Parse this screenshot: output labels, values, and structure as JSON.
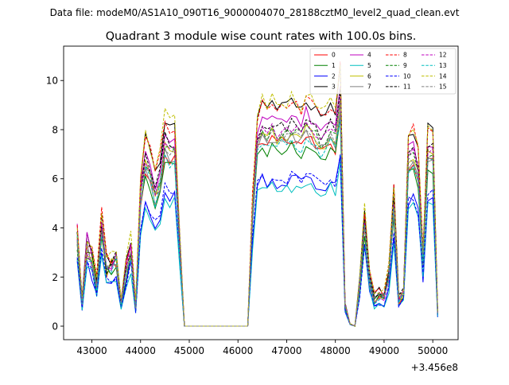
{
  "suptitle": "Data file: modeM0/AS1A10_090T16_9000004070_28188cztM0_level2_quad_clean.evt",
  "chart_data": {
    "type": "line",
    "title": "Quadrant 3 module wise count rates with 100.0s bins.",
    "xlabel": "",
    "ylabel": "",
    "x_offset_label": "+3.456e8",
    "xlim": [
      42420,
      50520
    ],
    "ylim": [
      -0.55,
      11.4
    ],
    "xticks": [
      43000,
      44000,
      45000,
      46000,
      47000,
      48000,
      49000,
      50000
    ],
    "xtick_labels": [
      "43000",
      "44000",
      "45000",
      "46000",
      "47000",
      "48000",
      "49000",
      "50000"
    ],
    "yticks": [
      0,
      2,
      4,
      6,
      8,
      10
    ],
    "ytick_labels": [
      "0",
      "2",
      "4",
      "6",
      "8",
      "10"
    ],
    "legend_position": "upper right",
    "x_range": [
      42700,
      50100
    ],
    "bin": 100,
    "profile": [
      [
        42700,
        4.0
      ],
      [
        42800,
        1.0
      ],
      [
        42900,
        3.6
      ],
      [
        43000,
        3.2
      ],
      [
        43100,
        1.8
      ],
      [
        43200,
        4.6
      ],
      [
        43300,
        2.6
      ],
      [
        43400,
        2.8
      ],
      [
        43500,
        3.0
      ],
      [
        43600,
        1.0
      ],
      [
        43700,
        2.4
      ],
      [
        43800,
        3.6
      ],
      [
        43900,
        0.9
      ],
      [
        44000,
        6.0
      ],
      [
        44100,
        7.5
      ],
      [
        44200,
        7.0
      ],
      [
        44300,
        6.0
      ],
      [
        44400,
        6.7
      ],
      [
        44500,
        8.3
      ],
      [
        44600,
        7.9
      ],
      [
        44700,
        8.0
      ],
      [
        44800,
        4.0
      ],
      [
        44900,
        0.0
      ],
      [
        46200,
        0.0
      ],
      [
        46300,
        5.2
      ],
      [
        46400,
        8.4
      ],
      [
        46500,
        8.9
      ],
      [
        46600,
        8.6
      ],
      [
        46700,
        8.9
      ],
      [
        46800,
        8.6
      ],
      [
        46900,
        8.8
      ],
      [
        47000,
        8.7
      ],
      [
        47100,
        8.9
      ],
      [
        47200,
        8.8
      ],
      [
        47300,
        8.6
      ],
      [
        47400,
        9.1
      ],
      [
        47500,
        8.8
      ],
      [
        47600,
        8.6
      ],
      [
        47700,
        8.3
      ],
      [
        47800,
        8.4
      ],
      [
        47900,
        8.8
      ],
      [
        48000,
        8.5
      ],
      [
        48100,
        10.3
      ],
      [
        48200,
        0.9
      ],
      [
        48300,
        0.1
      ],
      [
        48400,
        0.0
      ],
      [
        48500,
        1.9
      ],
      [
        48600,
        4.7
      ],
      [
        48700,
        2.2
      ],
      [
        48800,
        1.2
      ],
      [
        48900,
        1.4
      ],
      [
        49000,
        1.3
      ],
      [
        49100,
        2.4
      ],
      [
        49200,
        5.6
      ],
      [
        49300,
        1.2
      ],
      [
        49400,
        1.5
      ],
      [
        49500,
        7.6
      ],
      [
        49600,
        7.8
      ],
      [
        49700,
        6.9
      ],
      [
        49800,
        3.1
      ],
      [
        49900,
        7.9
      ],
      [
        50000,
        7.8
      ],
      [
        50100,
        0.6
      ]
    ],
    "series": [
      {
        "name": "0",
        "color": "#ff0000",
        "dashed": false,
        "level": 7.5
      },
      {
        "name": "1",
        "color": "#008000",
        "dashed": false,
        "level": 7.2
      },
      {
        "name": "2",
        "color": "#0000ff",
        "dashed": false,
        "level": 5.9
      },
      {
        "name": "3",
        "color": "#000000",
        "dashed": false,
        "level": 9.0
      },
      {
        "name": "4",
        "color": "#bf00bf",
        "dashed": false,
        "level": 8.4
      },
      {
        "name": "5",
        "color": "#00bfbf",
        "dashed": false,
        "level": 5.6
      },
      {
        "name": "6",
        "color": "#bfbf00",
        "dashed": false,
        "level": 7.8
      },
      {
        "name": "7",
        "color": "#808080",
        "dashed": false,
        "level": 7.6
      },
      {
        "name": "8",
        "color": "#ff0000",
        "dashed": true,
        "level": 9.0
      },
      {
        "name": "9",
        "color": "#008000",
        "dashed": true,
        "level": 7.9
      },
      {
        "name": "10",
        "color": "#0000ff",
        "dashed": true,
        "level": 6.0
      },
      {
        "name": "11",
        "color": "#000000",
        "dashed": true,
        "level": 8.2
      },
      {
        "name": "12",
        "color": "#bf00bf",
        "dashed": true,
        "level": 8.0
      },
      {
        "name": "13",
        "color": "#00bfbf",
        "dashed": true,
        "level": 7.4
      },
      {
        "name": "14",
        "color": "#bfbf00",
        "dashed": true,
        "level": 9.2
      },
      {
        "name": "15",
        "color": "#808080",
        "dashed": true,
        "level": 7.7
      }
    ]
  }
}
